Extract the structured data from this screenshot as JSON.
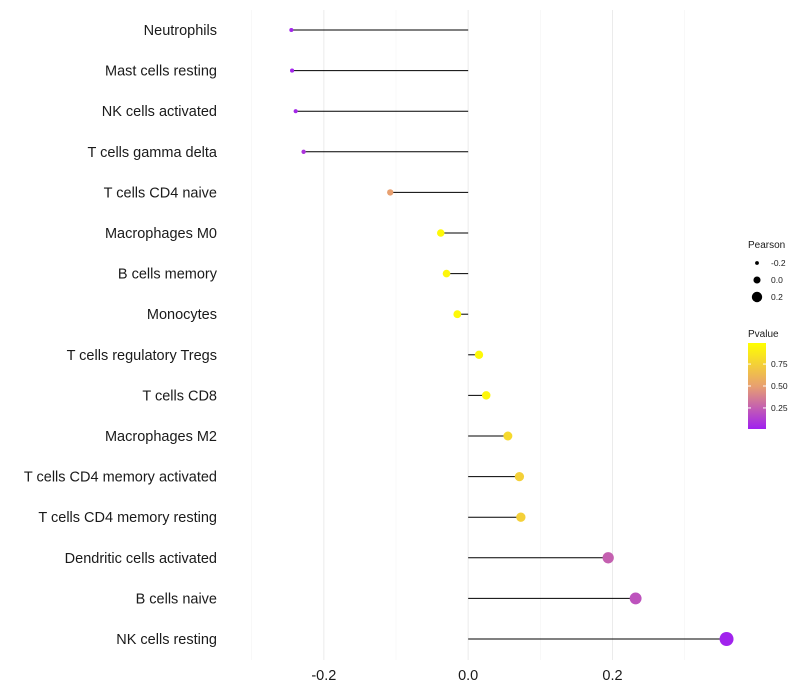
{
  "chart_data": {
    "type": "lollipop",
    "title": "",
    "xlabel": "",
    "ylabel": "",
    "xlim": [
      -0.33,
      0.36
    ],
    "xticks": [
      -0.2,
      0.0,
      0.2
    ],
    "xtick_labels": [
      "-0.2",
      "0.0",
      "0.2"
    ],
    "grid": true,
    "categories": [
      "Neutrophils",
      "Mast cells resting",
      "NK cells activated",
      "T cells gamma delta",
      "T cells CD4 naive",
      "Macrophages M0",
      "B cells memory",
      "Monocytes",
      "T cells regulatory  Tregs ",
      "T cells CD8",
      "Macrophages M2",
      "T cells CD4 memory activated",
      "T cells CD4 memory resting",
      "Dendritic cells activated",
      "B cells naive",
      "NK cells resting"
    ],
    "pearson": [
      -0.245,
      -0.244,
      -0.239,
      -0.228,
      -0.108,
      -0.038,
      -0.03,
      -0.015,
      0.015,
      0.025,
      0.055,
      0.071,
      0.073,
      0.194,
      0.232,
      0.358
    ],
    "pvalue": [
      0.02,
      0.02,
      0.03,
      0.08,
      0.5,
      0.97,
      0.95,
      0.97,
      0.97,
      0.95,
      0.8,
      0.75,
      0.75,
      0.25,
      0.2,
      0.01
    ],
    "legend": {
      "position": "right",
      "size_title": "Pearson",
      "size_labels": [
        "-0.2",
        "0.0",
        "0.2"
      ],
      "size_values": [
        -0.2,
        0.0,
        0.2
      ],
      "color_title": "Pvalue",
      "color_labels": [
        "0.75",
        "0.50",
        "0.25"
      ],
      "color_values": [
        0.75,
        0.5,
        0.25
      ],
      "color_low": "#a020f0",
      "color_mid": "#e8a070",
      "color_high": "#ffff00"
    }
  }
}
